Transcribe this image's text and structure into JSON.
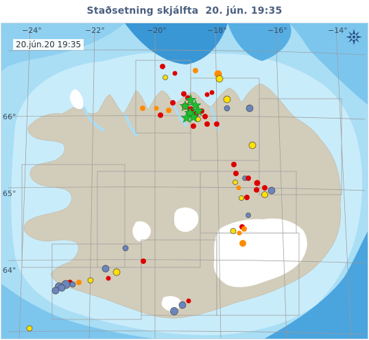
{
  "header": {
    "title": "Staðsetning skjálfta",
    "date_time": "20. jún. 19:35"
  },
  "map": {
    "timestamp_label": "20.jún.20  19:35",
    "longitude_ticks": [
      "−24°",
      "−22°",
      "−20°",
      "−18°",
      "−16°",
      "−14°"
    ],
    "latitude_ticks": [
      "66°",
      "65°",
      "64°"
    ],
    "compass_icon": "pan-compass-icon",
    "colors": {
      "sea_deep": "#2f8fd0",
      "sea_mid": "#6ec0ea",
      "sea_light": "#aee0f6",
      "land": "#d2ccba",
      "glacier": "#ffffff",
      "grid": "#9a9a9a",
      "quake_latest": "#dd0000",
      "quake_recent": "#ff8c00",
      "quake_day": "#ffe000",
      "quake_old": "#6a86bd",
      "largest_quake_star": "#22bb33"
    }
  }
}
